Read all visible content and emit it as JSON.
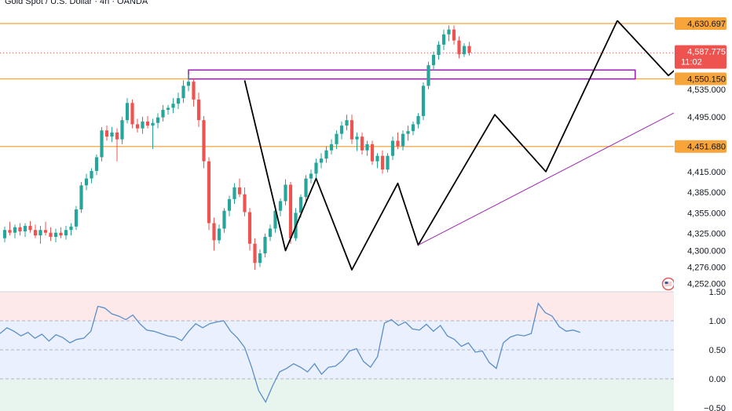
{
  "header": {
    "title": "Gold Spot / U.S. Dollar · 4h · OANDA"
  },
  "colors": {
    "up": "#26a69a",
    "down": "#ef5350",
    "level": "#f7a43a",
    "trendline": "#9c27b0",
    "drawing": "#000000",
    "rsi_line": "#5b8ec9",
    "rsi_band": "#eaf0fd",
    "rsi_over": "#fde9ea",
    "rsi_under": "#e8f4ee"
  },
  "chart_data": [
    {
      "type": "candlestick",
      "title": "Gold Spot / U.S. Dollar · 4h · OANDA",
      "ylim": [
        4240,
        4665
      ],
      "y_ticks": [
        {
          "value": 4535,
          "label": "4,535.000"
        },
        {
          "value": 4495,
          "label": "4,495.000"
        },
        {
          "value": 4415,
          "label": "4,415.000"
        },
        {
          "value": 4385,
          "label": "4,385.000"
        },
        {
          "value": 4355,
          "label": "4,355.000"
        },
        {
          "value": 4325,
          "label": "4,325.000"
        },
        {
          "value": 4300,
          "label": "4,300.000"
        },
        {
          "value": 4276,
          "label": "4,276.000"
        },
        {
          "value": 4252,
          "label": "4,252.000"
        }
      ],
      "levels": [
        {
          "value": 4630.697,
          "label": "4,630.697",
          "style": "solid"
        },
        {
          "value": 4550.15,
          "label": "4,550.150",
          "style": "solid"
        },
        {
          "value": 4451.68,
          "label": "4,451.680",
          "style": "solid"
        }
      ],
      "current_price": {
        "value": 4587.775,
        "label": "4,587.775",
        "countdown": "11:02"
      },
      "zone": {
        "low": 4550,
        "high": 4563
      },
      "candles": [
        [
          4318,
          4335,
          4312,
          4330
        ],
        [
          4330,
          4342,
          4322,
          4326
        ],
        [
          4326,
          4338,
          4318,
          4334
        ],
        [
          4334,
          4340,
          4322,
          4328
        ],
        [
          4328,
          4340,
          4320,
          4336
        ],
        [
          4336,
          4343,
          4326,
          4330
        ],
        [
          4330,
          4338,
          4318,
          4322
        ],
        [
          4322,
          4336,
          4310,
          4330
        ],
        [
          4330,
          4342,
          4322,
          4326
        ],
        [
          4326,
          4334,
          4314,
          4320
        ],
        [
          4320,
          4332,
          4312,
          4326
        ],
        [
          4326,
          4334,
          4318,
          4322
        ],
        [
          4322,
          4336,
          4316,
          4330
        ],
        [
          4330,
          4340,
          4322,
          4335
        ],
        [
          4335,
          4365,
          4330,
          4360
        ],
        [
          4360,
          4400,
          4355,
          4395
        ],
        [
          4395,
          4412,
          4388,
          4405
        ],
        [
          4405,
          4420,
          4398,
          4416
        ],
        [
          4416,
          4440,
          4410,
          4436
        ],
        [
          4436,
          4480,
          4430,
          4475
        ],
        [
          4475,
          4482,
          4460,
          4466
        ],
        [
          4466,
          4480,
          4458,
          4472
        ],
        [
          4472,
          4478,
          4430,
          4462
        ],
        [
          4462,
          4495,
          4455,
          4490
        ],
        [
          4490,
          4522,
          4485,
          4515
        ],
        [
          4515,
          4520,
          4478,
          4484
        ],
        [
          4484,
          4492,
          4472,
          4478
        ],
        [
          4478,
          4495,
          4470,
          4488
        ],
        [
          4488,
          4496,
          4478,
          4482
        ],
        [
          4482,
          4492,
          4448,
          4486
        ],
        [
          4486,
          4500,
          4478,
          4494
        ],
        [
          4494,
          4512,
          4488,
          4505
        ],
        [
          4505,
          4512,
          4498,
          4508
        ],
        [
          4508,
          4522,
          4500,
          4514
        ],
        [
          4514,
          4530,
          4506,
          4522
        ],
        [
          4522,
          4548,
          4515,
          4540
        ],
        [
          4540,
          4556,
          4532,
          4546
        ],
        [
          4546,
          4550,
          4510,
          4520
        ],
        [
          4520,
          4530,
          4480,
          4490
        ],
        [
          4490,
          4496,
          4420,
          4430
        ],
        [
          4430,
          4436,
          4330,
          4340
        ],
        [
          4340,
          4348,
          4300,
          4315
        ],
        [
          4315,
          4338,
          4310,
          4332
        ],
        [
          4332,
          4362,
          4326,
          4358
        ],
        [
          4358,
          4380,
          4350,
          4375
        ],
        [
          4375,
          4398,
          4368,
          4392
        ],
        [
          4392,
          4405,
          4378,
          4382
        ],
        [
          4382,
          4392,
          4350,
          4356
        ],
        [
          4356,
          4362,
          4300,
          4310
        ],
        [
          4310,
          4318,
          4272,
          4282
        ],
        [
          4282,
          4302,
          4276,
          4296
        ],
        [
          4296,
          4325,
          4290,
          4320
        ],
        [
          4320,
          4338,
          4314,
          4332
        ],
        [
          4332,
          4364,
          4326,
          4358
        ],
        [
          4358,
          4376,
          4350,
          4372
        ],
        [
          4372,
          4404,
          4366,
          4396
        ],
        [
          4396,
          4400,
          4310,
          4318
        ],
        [
          4318,
          4362,
          4314,
          4355
        ],
        [
          4355,
          4382,
          4348,
          4378
        ],
        [
          4378,
          4410,
          4372,
          4405
        ],
        [
          4405,
          4418,
          4398,
          4412
        ],
        [
          4412,
          4434,
          4405,
          4428
        ],
        [
          4428,
          4442,
          4420,
          4434
        ],
        [
          4434,
          4452,
          4428,
          4446
        ],
        [
          4446,
          4462,
          4440,
          4455
        ],
        [
          4455,
          4475,
          4448,
          4470
        ],
        [
          4470,
          4488,
          4462,
          4482
        ],
        [
          4482,
          4498,
          4475,
          4490
        ],
        [
          4490,
          4498,
          4455,
          4462
        ],
        [
          4462,
          4472,
          4445,
          4466
        ],
        [
          4466,
          4472,
          4440,
          4446
        ],
        [
          4446,
          4460,
          4438,
          4455
        ],
        [
          4455,
          4460,
          4425,
          4430
        ],
        [
          4430,
          4442,
          4420,
          4438
        ],
        [
          4438,
          4446,
          4412,
          4418
        ],
        [
          4418,
          4442,
          4414,
          4438
        ],
        [
          4438,
          4466,
          4432,
          4460
        ],
        [
          4460,
          4472,
          4448,
          4452
        ],
        [
          4452,
          4475,
          4446,
          4470
        ],
        [
          4470,
          4482,
          4460,
          4474
        ],
        [
          4474,
          4488,
          4468,
          4484
        ],
        [
          4484,
          4500,
          4478,
          4496
        ],
        [
          4496,
          4545,
          4490,
          4540
        ],
        [
          4540,
          4575,
          4535,
          4570
        ],
        [
          4570,
          4590,
          4562,
          4585
        ],
        [
          4585,
          4605,
          4578,
          4600
        ],
        [
          4600,
          4622,
          4592,
          4615
        ],
        [
          4615,
          4628,
          4605,
          4622
        ],
        [
          4622,
          4628,
          4600,
          4606
        ],
        [
          4606,
          4612,
          4580,
          4586
        ],
        [
          4586,
          4602,
          4582,
          4598
        ],
        [
          4598,
          4604,
          4584,
          4588
        ]
      ],
      "drawings": [
        {
          "name": "zigzag-left",
          "points": [
            [
              47,
              4548
            ],
            [
              55,
              4300
            ],
            [
              61,
              4405
            ],
            [
              68,
              4272
            ],
            [
              77,
              4398
            ],
            [
              81,
              4308
            ],
            [
              96,
              4498
            ],
            [
              106,
              4415
            ],
            [
              120,
              4635
            ]
          ]
        },
        {
          "name": "zigzag-projection",
          "points": [
            [
              120,
              4635
            ],
            [
              130,
              4555
            ],
            [
              145,
              4650
            ]
          ],
          "arrow": true
        },
        {
          "name": "trendline",
          "points": [
            [
              81,
              4308
            ],
            [
              170,
              4650
            ]
          ]
        }
      ],
      "event_icons": [
        {
          "index": 130
        },
        {
          "index": 138
        },
        {
          "index": 139
        }
      ]
    },
    {
      "type": "line",
      "name": "rsi-pane",
      "ylim": [
        -0.5,
        1.5
      ],
      "y_ticks": [
        {
          "value": 1.5,
          "label": "1.50"
        },
        {
          "value": 1.0,
          "label": "1.00"
        },
        {
          "value": 0.5,
          "label": "0.50"
        },
        {
          "value": 0.0,
          "label": "0.00"
        },
        {
          "value": -0.5,
          "label": "−0.50"
        }
      ],
      "band_levels": [
        1.0,
        0.5,
        0.0
      ],
      "values": [
        0.78,
        0.88,
        0.82,
        0.74,
        0.8,
        0.7,
        0.77,
        0.65,
        0.76,
        0.71,
        0.62,
        0.68,
        0.7,
        0.82,
        1.25,
        1.22,
        1.12,
        1.08,
        1.02,
        1.1,
        0.95,
        0.84,
        0.82,
        0.78,
        0.74,
        0.72,
        0.66,
        0.82,
        0.95,
        0.88,
        0.95,
        0.98,
        1.0,
        0.82,
        0.7,
        0.54,
        0.2,
        -0.2,
        -0.4,
        -0.12,
        0.12,
        0.18,
        0.26,
        0.2,
        0.12,
        0.26,
        0.08,
        0.2,
        0.22,
        0.32,
        0.48,
        0.52,
        0.3,
        0.2,
        0.38,
        0.96,
        1.02,
        0.92,
        0.98,
        0.86,
        0.84,
        0.94,
        0.82,
        0.92,
        0.74,
        0.68,
        0.56,
        0.62,
        0.46,
        0.48,
        0.28,
        0.18,
        0.62,
        0.72,
        0.76,
        0.74,
        0.78,
        1.3,
        1.14,
        1.08,
        0.9,
        0.82,
        0.84,
        0.8
      ]
    }
  ]
}
